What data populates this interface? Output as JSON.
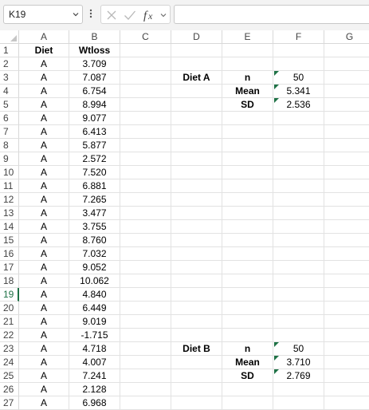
{
  "formula_bar": {
    "name_box": "K19",
    "formula": ""
  },
  "columns": [
    "A",
    "B",
    "C",
    "D",
    "E",
    "F",
    "G"
  ],
  "rows": [
    {
      "n": "1",
      "A": "Diet",
      "B": "Wtloss",
      "C": "",
      "D": "",
      "E": "",
      "F": ""
    },
    {
      "n": "2",
      "A": "A",
      "B": "3.709",
      "C": "",
      "D": "",
      "E": "",
      "F": ""
    },
    {
      "n": "3",
      "A": "A",
      "B": "7.087",
      "C": "",
      "D": "Diet A",
      "E": "n",
      "F": "50"
    },
    {
      "n": "4",
      "A": "A",
      "B": "6.754",
      "C": "",
      "D": "",
      "E": "Mean",
      "F": "5.341"
    },
    {
      "n": "5",
      "A": "A",
      "B": "8.994",
      "C": "",
      "D": "",
      "E": "SD",
      "F": "2.536"
    },
    {
      "n": "6",
      "A": "A",
      "B": "9.077",
      "C": "",
      "D": "",
      "E": "",
      "F": ""
    },
    {
      "n": "7",
      "A": "A",
      "B": "6.413",
      "C": "",
      "D": "",
      "E": "",
      "F": ""
    },
    {
      "n": "8",
      "A": "A",
      "B": "5.877",
      "C": "",
      "D": "",
      "E": "",
      "F": ""
    },
    {
      "n": "9",
      "A": "A",
      "B": "2.572",
      "C": "",
      "D": "",
      "E": "",
      "F": ""
    },
    {
      "n": "10",
      "A": "A",
      "B": "7.520",
      "C": "",
      "D": "",
      "E": "",
      "F": ""
    },
    {
      "n": "11",
      "A": "A",
      "B": "6.881",
      "C": "",
      "D": "",
      "E": "",
      "F": ""
    },
    {
      "n": "12",
      "A": "A",
      "B": "7.265",
      "C": "",
      "D": "",
      "E": "",
      "F": ""
    },
    {
      "n": "13",
      "A": "A",
      "B": "3.477",
      "C": "",
      "D": "",
      "E": "",
      "F": ""
    },
    {
      "n": "14",
      "A": "A",
      "B": "3.755",
      "C": "",
      "D": "",
      "E": "",
      "F": ""
    },
    {
      "n": "15",
      "A": "A",
      "B": "8.760",
      "C": "",
      "D": "",
      "E": "",
      "F": ""
    },
    {
      "n": "16",
      "A": "A",
      "B": "7.032",
      "C": "",
      "D": "",
      "E": "",
      "F": ""
    },
    {
      "n": "17",
      "A": "A",
      "B": "9.052",
      "C": "",
      "D": "",
      "E": "",
      "F": ""
    },
    {
      "n": "18",
      "A": "A",
      "B": "10.062",
      "C": "",
      "D": "",
      "E": "",
      "F": ""
    },
    {
      "n": "19",
      "A": "A",
      "B": "4.840",
      "C": "",
      "D": "",
      "E": "",
      "F": ""
    },
    {
      "n": "20",
      "A": "A",
      "B": "6.449",
      "C": "",
      "D": "",
      "E": "",
      "F": ""
    },
    {
      "n": "21",
      "A": "A",
      "B": "9.019",
      "C": "",
      "D": "",
      "E": "",
      "F": ""
    },
    {
      "n": "22",
      "A": "A",
      "B": "-1.715",
      "C": "",
      "D": "",
      "E": "",
      "F": ""
    },
    {
      "n": "23",
      "A": "A",
      "B": "4.718",
      "C": "",
      "D": "Diet B",
      "E": "n",
      "F": "50"
    },
    {
      "n": "24",
      "A": "A",
      "B": "4.007",
      "C": "",
      "D": "",
      "E": "Mean",
      "F": "3.710"
    },
    {
      "n": "25",
      "A": "A",
      "B": "7.241",
      "C": "",
      "D": "",
      "E": "SD",
      "F": "2.769"
    },
    {
      "n": "26",
      "A": "A",
      "B": "2.128",
      "C": "",
      "D": "",
      "E": "",
      "F": ""
    },
    {
      "n": "27",
      "A": "A",
      "B": "6.968",
      "C": "",
      "D": "",
      "E": "",
      "F": ""
    }
  ],
  "selected_row": "19",
  "colors": {
    "accent": "#1e7145",
    "gridline": "#e2e2e2",
    "toolbar_bg": "#f3f3f3"
  }
}
